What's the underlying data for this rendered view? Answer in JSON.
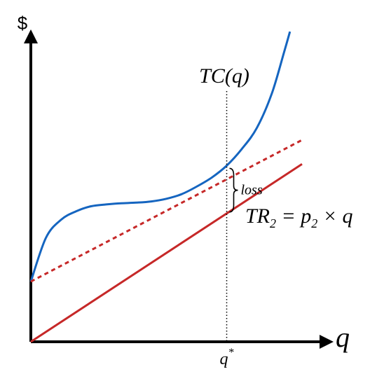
{
  "chart_data": {
    "type": "line",
    "y_axis_label": "$",
    "x_axis_label": "q",
    "xlim": [
      0,
      10
    ],
    "ylim": [
      0,
      10
    ],
    "grid": false,
    "series": [
      {
        "name": "TC(q)",
        "style": "solid",
        "color": "#1565c0",
        "points": [
          [
            0,
            2.0
          ],
          [
            0.5,
            3.45
          ],
          [
            1.0,
            4.05
          ],
          [
            1.5,
            4.33
          ],
          [
            2.0,
            4.5
          ],
          [
            2.5,
            4.56
          ],
          [
            3.0,
            4.6
          ],
          [
            3.5,
            4.62
          ],
          [
            4.0,
            4.66
          ],
          [
            4.5,
            4.75
          ],
          [
            5.0,
            4.9
          ],
          [
            5.5,
            5.15
          ],
          [
            6.0,
            5.45
          ],
          [
            6.5,
            5.85
          ],
          [
            7.0,
            6.4
          ],
          [
            7.5,
            7.1
          ],
          [
            8.0,
            8.25
          ],
          [
            8.4,
            9.6
          ],
          [
            8.6,
            10.3
          ]
        ]
      },
      {
        "name": "",
        "style": "dashed",
        "color": "#c62828",
        "points": [
          [
            0,
            2.0
          ],
          [
            9.0,
            6.7
          ]
        ]
      },
      {
        "name": "TR2 = p2 × q",
        "style": "solid",
        "color": "#c62828",
        "points": [
          [
            0,
            0
          ],
          [
            9.0,
            5.9
          ]
        ]
      }
    ],
    "markers": {
      "q_star": 6.5,
      "q_star_label": "q",
      "q_star_superscript": "*",
      "loss_label": "loss"
    },
    "annotations": {
      "tc_label": "TC(q)",
      "tr_label_main": "TR",
      "tr_label_sub": "2",
      "tr_label_eq": " = p",
      "tr_label_sub2": "2",
      "tr_label_times": " × q"
    }
  }
}
